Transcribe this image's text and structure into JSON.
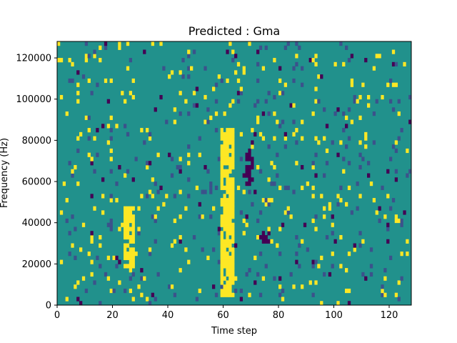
{
  "chart_data": {
    "type": "heatmap",
    "title": "Predicted : Gma",
    "xlabel": "Time step",
    "ylabel": "Frequency (Hz)",
    "xlim": [
      0,
      128
    ],
    "ylim": [
      0,
      128000
    ],
    "x_ticks": [
      0,
      20,
      40,
      60,
      80,
      100,
      120
    ],
    "y_ticks": [
      0,
      20000,
      40000,
      60000,
      80000,
      100000,
      120000
    ],
    "y_tick_labels": [
      "0",
      "20000",
      "40000",
      "60000",
      "80000",
      "100000",
      "120000"
    ],
    "grid_resolution": {
      "time_steps": 128,
      "frequency_bins": 64
    },
    "colors": {
      "background": "#21918c",
      "high": "#fde725",
      "low": "#440154",
      "mid": "#3b528b",
      "light": "#5ec962"
    },
    "dominant_bands": [
      {
        "level": "high",
        "time_start": 59,
        "time_end": 63,
        "freq_start": 4000,
        "freq_end": 86000
      },
      {
        "level": "high",
        "time_start": 24,
        "time_end": 27,
        "freq_start": 18000,
        "freq_end": 48000
      },
      {
        "level": "low",
        "time_start": 68,
        "time_end": 70,
        "freq_start": 56000,
        "freq_end": 76000
      },
      {
        "level": "low",
        "time_start": 73,
        "time_end": 76,
        "freq_start": 30000,
        "freq_end": 36000
      }
    ]
  }
}
